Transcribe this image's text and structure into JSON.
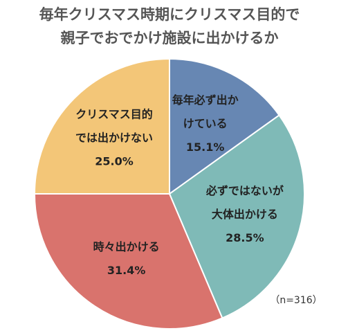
{
  "chart_data": {
    "type": "pie",
    "title": [
      "毎年クリスマス時期にクリスマス目的で",
      "親子でおでかけ施設に出かけるか"
    ],
    "categories": [
      [
        "毎年必ず出か",
        "けている"
      ],
      [
        "必ずではないが",
        "大体出かける"
      ],
      [
        "時々出かける"
      ],
      [
        "クリスマス目的",
        "では出かけない"
      ]
    ],
    "values": [
      15.1,
      28.5,
      31.4,
      25.0
    ],
    "value_labels": [
      "15.1%",
      "28.5%",
      "31.4%",
      "25.0%"
    ],
    "colors": [
      "#6787b3",
      "#7fbab7",
      "#d9736d",
      "#f3c678"
    ],
    "annotation": "（n=316）"
  }
}
